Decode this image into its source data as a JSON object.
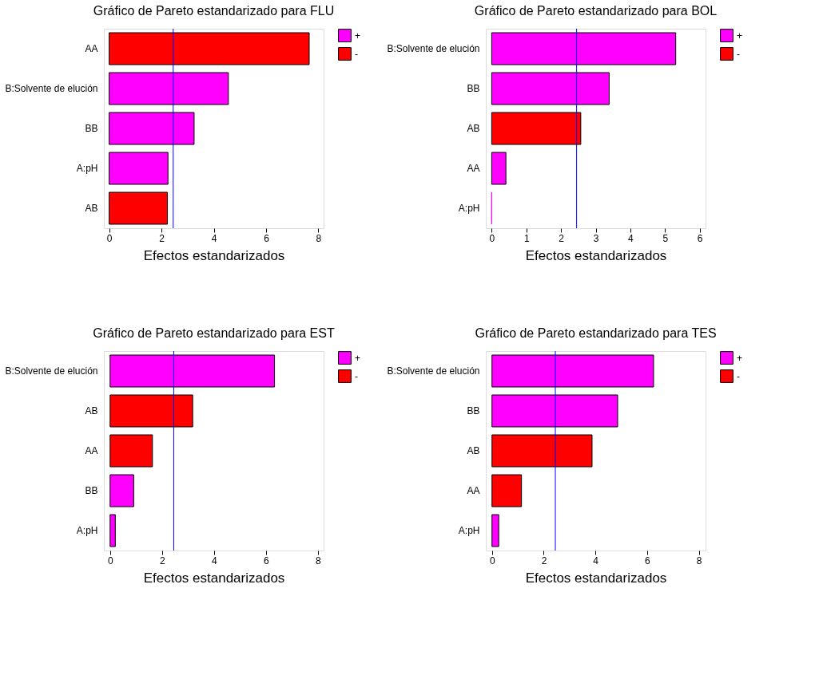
{
  "chart_data": [
    {
      "type": "bar",
      "orientation": "horizontal",
      "title": "Gráfico de Pareto estandarizado para FLU",
      "xlabel": "Efectos estandarizados",
      "categories": [
        "AA",
        "B:Solvente de elución",
        "BB",
        "A:pH",
        "AB"
      ],
      "series": [
        {
          "name": "+",
          "color": "#ff00ff",
          "values": [
            null,
            4.56,
            3.25,
            2.25,
            null
          ]
        },
        {
          "name": "-",
          "color": "#ff0000",
          "values": [
            7.65,
            null,
            null,
            null,
            2.23
          ]
        }
      ],
      "xlim": [
        -0.2,
        8.2
      ],
      "xticks": [
        0,
        2,
        4,
        6,
        8
      ],
      "ref_lines": [
        {
          "axis": "x",
          "value": 2.45,
          "color": "#0000ff"
        }
      ],
      "legend": "right",
      "grid": false
    },
    {
      "type": "bar",
      "orientation": "horizontal",
      "title": "Gráfico de Pareto estandarizado para BOL",
      "xlabel": "Efectos estandarizados",
      "categories": [
        "B:Solvente de elución",
        "BB",
        "AB",
        "AA",
        "A:pH"
      ],
      "series": [
        {
          "name": "+",
          "color": "#ff00ff",
          "values": [
            5.31,
            3.39,
            null,
            0.41,
            0.0
          ]
        },
        {
          "name": "-",
          "color": "#ff0000",
          "values": [
            null,
            null,
            2.57,
            null,
            null
          ]
        }
      ],
      "xlim": [
        -0.17,
        6.17
      ],
      "xticks": [
        0,
        1,
        2,
        3,
        4,
        5,
        6
      ],
      "ref_lines": [
        {
          "axis": "x",
          "value": 2.45,
          "color": "#0000ff"
        }
      ],
      "legend": "right",
      "grid": false
    },
    {
      "type": "bar",
      "orientation": "horizontal",
      "title": "Gráfico de Pareto estandarizado para EST",
      "xlabel": "Efectos estandarizados",
      "categories": [
        "B:Solvente de elución",
        "AB",
        "AA",
        "BB",
        "A:pH"
      ],
      "series": [
        {
          "name": "+",
          "color": "#ff00ff",
          "values": [
            6.33,
            null,
            null,
            0.91,
            0.2
          ]
        },
        {
          "name": "-",
          "color": "#ff0000",
          "values": [
            null,
            3.18,
            1.63,
            null,
            null
          ]
        }
      ],
      "xlim": [
        -0.24,
        8.22
      ],
      "xticks": [
        0,
        2,
        4,
        6,
        8
      ],
      "ref_lines": [
        {
          "axis": "x",
          "value": 2.45,
          "color": "#0000ff"
        }
      ],
      "legend": "right",
      "grid": false
    },
    {
      "type": "bar",
      "orientation": "horizontal",
      "title": "Gráfico de Pareto estandarizado para TES",
      "xlabel": "Efectos estandarizados",
      "categories": [
        "B:Solvente de elución",
        "BB",
        "AB",
        "AA",
        "A:pH"
      ],
      "series": [
        {
          "name": "+",
          "color": "#ff00ff",
          "values": [
            6.25,
            4.86,
            null,
            null,
            0.26
          ]
        },
        {
          "name": "-",
          "color": "#ff0000",
          "values": [
            null,
            null,
            3.87,
            1.14,
            null
          ]
        }
      ],
      "xlim": [
        -0.24,
        8.26
      ],
      "xticks": [
        0,
        2,
        4,
        6,
        8
      ],
      "ref_lines": [
        {
          "axis": "x",
          "value": 2.45,
          "color": "#0000ff"
        }
      ],
      "legend": "right",
      "grid": false
    }
  ]
}
